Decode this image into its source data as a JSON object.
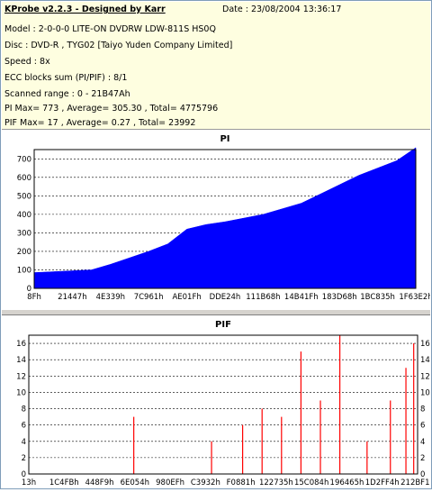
{
  "header": {
    "app_title": "KProbe v2.2.3 - Designed by Karr",
    "date": "Date : 23/08/2004 13:36:17",
    "lines": [
      "Model : 2-0-0-0 LITE-ON DVDRW LDW-811S   HS0Q",
      "Disc : DVD-R , TYG02 [Taiyo Yuden Company Limited]",
      "Speed : 8x",
      "ECC blocks sum (PI/PIF) : 8/1",
      "Scanned range : 0 - 21B47Ah",
      "PI Max= 773 , Average= 305.30 , Total= 4775796",
      "PIF Max= 17 , Average= 0.27 , Total= 23992"
    ]
  },
  "chart_data": [
    {
      "type": "area",
      "title": "PI",
      "color": "#0000ff",
      "ylim": [
        0,
        750
      ],
      "yticks": [
        0,
        100,
        200,
        300,
        400,
        500,
        600,
        700
      ],
      "xticks": [
        "8Fh",
        "21447h",
        "4E339h",
        "7C961h",
        "AE01Fh",
        "DDE24h",
        "111B68h",
        "14B41Fh",
        "183D68h",
        "1BC835h",
        "1F63E2h"
      ],
      "x": [
        0,
        0.05,
        0.1,
        0.15,
        0.2,
        0.25,
        0.3,
        0.35,
        0.4,
        0.45,
        0.5,
        0.55,
        0.6,
        0.65,
        0.7,
        0.75,
        0.8,
        0.85,
        0.9,
        0.95,
        1.0
      ],
      "values": [
        85,
        90,
        95,
        100,
        130,
        165,
        200,
        240,
        320,
        345,
        360,
        380,
        400,
        430,
        460,
        510,
        560,
        610,
        650,
        690,
        760
      ]
    },
    {
      "type": "bar",
      "title": "PIF",
      "color": "#ff0000",
      "ylim": [
        0,
        17
      ],
      "yticks": [
        0,
        2,
        4,
        6,
        8,
        10,
        12,
        14,
        16
      ],
      "xticks": [
        "13h",
        "1C4FBh",
        "448F9h",
        "6E054h",
        "980EFh",
        "C3932h",
        "F0881h",
        "122735h",
        "15C084h",
        "196465h",
        "1D2FF4h",
        "212BF1h"
      ],
      "spikes": [
        {
          "x": 0.27,
          "v": 7
        },
        {
          "x": 0.47,
          "v": 4
        },
        {
          "x": 0.55,
          "v": 6
        },
        {
          "x": 0.6,
          "v": 8
        },
        {
          "x": 0.65,
          "v": 7
        },
        {
          "x": 0.7,
          "v": 15
        },
        {
          "x": 0.75,
          "v": 9
        },
        {
          "x": 0.8,
          "v": 17
        },
        {
          "x": 0.87,
          "v": 4
        },
        {
          "x": 0.93,
          "v": 9
        },
        {
          "x": 0.97,
          "v": 13
        },
        {
          "x": 0.99,
          "v": 16
        }
      ]
    }
  ]
}
